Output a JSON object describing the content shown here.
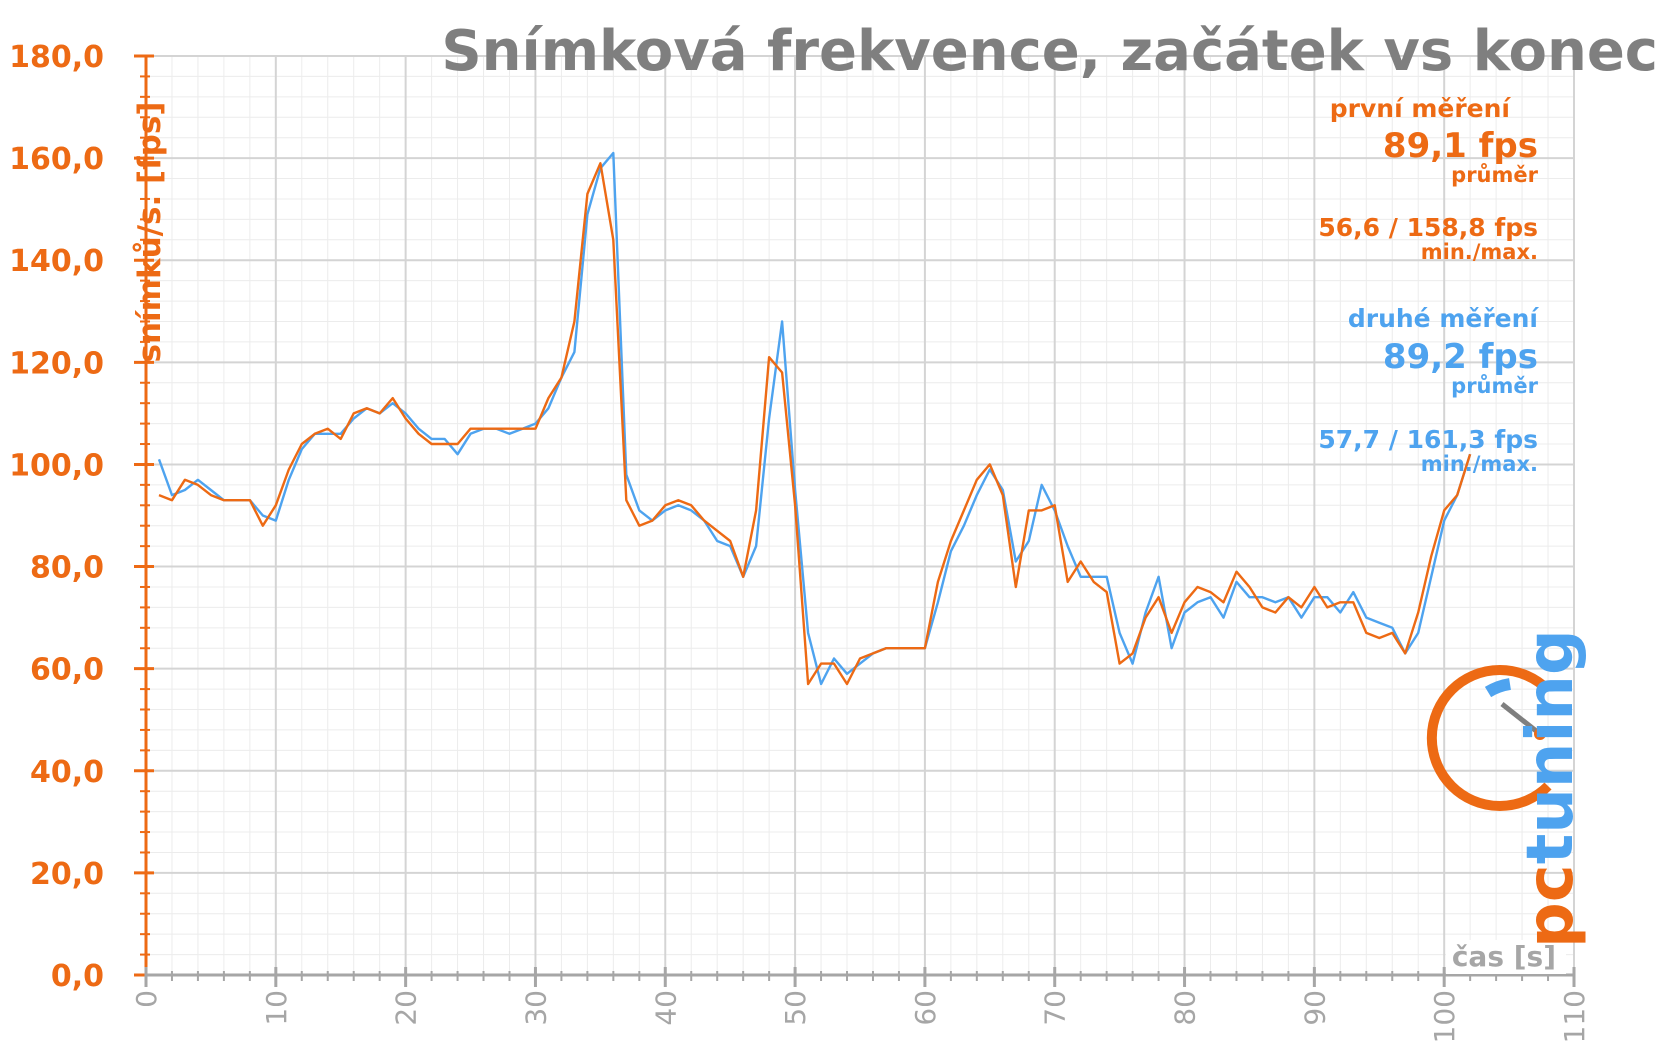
{
  "chart_data": {
    "type": "line",
    "title": "Snímková frekvence, začátek vs konec",
    "xlabel": "čas [s]",
    "ylabel": "snímků/s. [fps]",
    "xlim": [
      0,
      110
    ],
    "ylim": [
      0,
      180
    ],
    "x_ticks": [
      "0",
      "10",
      "20",
      "30",
      "40",
      "50",
      "60",
      "70",
      "80",
      "90",
      "100",
      "110"
    ],
    "y_ticks": [
      "0,0",
      "20,0",
      "40,0",
      "60,0",
      "80,0",
      "100,0",
      "120,0",
      "140,0",
      "160,0",
      "180,0"
    ],
    "grid": true,
    "legend": "top-right annotations",
    "series": [
      {
        "name": "první měření",
        "color": "#ed6a14",
        "values": [
          94,
          93,
          97,
          96,
          94,
          93,
          93,
          93,
          88,
          92,
          99,
          104,
          106,
          107,
          105,
          110,
          111,
          110,
          113,
          109,
          106,
          104,
          104,
          104,
          107,
          107,
          107,
          107,
          107,
          107,
          113,
          117,
          128,
          153,
          159,
          144,
          93,
          88,
          89,
          92,
          93,
          92,
          89,
          87,
          85,
          78,
          91,
          121,
          118,
          92,
          57,
          61,
          61,
          57,
          62,
          63,
          64,
          64,
          64,
          64,
          77,
          85,
          91,
          97,
          100,
          94,
          76,
          91,
          91,
          92,
          77,
          81,
          77,
          75,
          61,
          63,
          70,
          74,
          67,
          73,
          76,
          75,
          73,
          79,
          76,
          72,
          71,
          74,
          72,
          76,
          72,
          73,
          73,
          67,
          66,
          67,
          63,
          71,
          82,
          91,
          94,
          102
        ],
        "values2": [
          101,
          94,
          95,
          97,
          95,
          93,
          93,
          93,
          90,
          89,
          97,
          103,
          106,
          106,
          106,
          109,
          111,
          110,
          112,
          110,
          107,
          105,
          105,
          102,
          106,
          107,
          107,
          106,
          107,
          108,
          111,
          117,
          122,
          149,
          158,
          161,
          98,
          91,
          89,
          91,
          92,
          91,
          89,
          85,
          84,
          78,
          84,
          109,
          128,
          95,
          67,
          57,
          62,
          59,
          61,
          63,
          64,
          64,
          64,
          64,
          73,
          83,
          88,
          94,
          99,
          95,
          81,
          85,
          96,
          91,
          84,
          78,
          78,
          78,
          67,
          61,
          71,
          78,
          64,
          71,
          73,
          74,
          70,
          77,
          74,
          74,
          73,
          74,
          70,
          74,
          74,
          71,
          75,
          70,
          69,
          68,
          63,
          67,
          78,
          89,
          94,
          102
        ],
        "avg": "89,1 fps",
        "avg_label": "průměr",
        "minmax": "56,6 / 158,8 fps",
        "minmax_label": "min./max."
      },
      {
        "name": "druhé měření",
        "color": "#4ea3ef",
        "avg": "89,2 fps",
        "avg_label": "průměr",
        "minmax": "57,7 / 161,3 fps",
        "minmax_label": "min./max."
      }
    ]
  },
  "logo": {
    "text": "pctuning",
    "colors": {
      "orange": "#ed6a14",
      "blue": "#4ea3ef",
      "text": "#9a9a9a"
    }
  }
}
